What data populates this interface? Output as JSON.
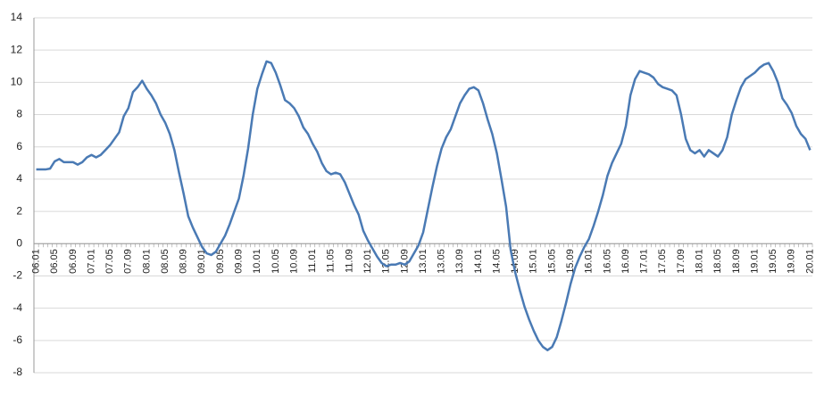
{
  "chart_data": {
    "type": "line",
    "color": "#4a7ab4",
    "grid": true,
    "ylim": [
      -8,
      14
    ],
    "yticks": [
      -8,
      -6,
      -4,
      -2,
      0,
      2,
      4,
      6,
      8,
      10,
      12,
      14
    ],
    "categories": [
      "06.01",
      null,
      null,
      null,
      "06.05",
      null,
      null,
      null,
      "06.09",
      null,
      null,
      null,
      "07.01",
      null,
      null,
      null,
      "07.05",
      null,
      null,
      null,
      "07.09",
      null,
      null,
      null,
      "08.01",
      null,
      null,
      null,
      "08.05",
      null,
      null,
      null,
      "08.09",
      null,
      null,
      null,
      "09.01",
      null,
      null,
      null,
      "09.05",
      null,
      null,
      null,
      "09.09",
      null,
      null,
      null,
      "10.01",
      null,
      null,
      null,
      "10.05",
      null,
      null,
      null,
      "10.09",
      null,
      null,
      null,
      "11.01",
      null,
      null,
      null,
      "11.05",
      null,
      null,
      null,
      "11.09",
      null,
      null,
      null,
      "12.01",
      null,
      null,
      null,
      "12.05",
      null,
      null,
      null,
      "12.09",
      null,
      null,
      null,
      "13.01",
      null,
      null,
      null,
      "13.05",
      null,
      null,
      null,
      "13.09",
      null,
      null,
      null,
      "14.01",
      null,
      null,
      null,
      "14.05",
      null,
      null,
      null,
      "14.09",
      null,
      null,
      null,
      "15.01",
      null,
      null,
      null,
      "15.05",
      null,
      null,
      null,
      "15.09",
      null,
      null,
      null,
      "16.01",
      null,
      null,
      null,
      "16.05",
      null,
      null,
      null,
      "16.09",
      null,
      null,
      null,
      "17.01",
      null,
      null,
      null,
      "17.05",
      null,
      null,
      null,
      "17.09",
      null,
      null,
      null,
      "18.01",
      null,
      null,
      null,
      "18.05",
      null,
      null,
      null,
      "18.09",
      null,
      null,
      null,
      "19.01",
      null,
      null,
      null,
      "19.05",
      null,
      null,
      null,
      "19.09",
      null,
      null,
      null,
      "20.01"
    ],
    "values": [
      4.6,
      4.6,
      4.6,
      4.65,
      5.1,
      5.25,
      5.05,
      5.05,
      5.05,
      4.9,
      5.05,
      5.35,
      5.5,
      5.35,
      5.5,
      5.8,
      6.1,
      6.5,
      6.9,
      7.9,
      8.4,
      9.4,
      9.7,
      10.1,
      9.6,
      9.2,
      8.7,
      8.0,
      7.5,
      6.8,
      5.8,
      4.4,
      3.1,
      1.7,
      1.0,
      0.4,
      -0.2,
      -0.6,
      -0.7,
      -0.5,
      0.0,
      0.5,
      1.2,
      2.0,
      2.8,
      4.2,
      5.9,
      8.0,
      9.6,
      10.5,
      11.3,
      11.2,
      10.6,
      9.8,
      8.9,
      8.7,
      8.4,
      7.9,
      7.2,
      6.8,
      6.2,
      5.7,
      5.0,
      4.5,
      4.3,
      4.4,
      4.3,
      3.8,
      3.1,
      2.4,
      1.8,
      0.8,
      0.2,
      -0.3,
      -0.8,
      -1.2,
      -1.4,
      -1.3,
      -1.3,
      -1.2,
      -1.3,
      -1.1,
      -0.6,
      -0.1,
      0.7,
      2.1,
      3.5,
      4.8,
      5.9,
      6.6,
      7.1,
      7.9,
      8.7,
      9.2,
      9.6,
      9.7,
      9.5,
      8.7,
      7.7,
      6.8,
      5.6,
      4.0,
      2.3,
      -0.4,
      -1.8,
      -2.9,
      -3.9,
      -4.7,
      -5.4,
      -6.0,
      -6.4,
      -6.6,
      -6.4,
      -5.8,
      -4.8,
      -3.7,
      -2.5,
      -1.5,
      -0.8,
      -0.2,
      0.3,
      1.1,
      2.0,
      3.0,
      4.2,
      5.0,
      5.6,
      6.2,
      7.3,
      9.2,
      10.2,
      10.7,
      10.6,
      10.5,
      10.3,
      9.9,
      9.7,
      9.6,
      9.5,
      9.2,
      8.0,
      6.5,
      5.8,
      5.6,
      5.8,
      5.4,
      5.8,
      5.6,
      5.4,
      5.8,
      6.6,
      8.0,
      8.9,
      9.7,
      10.2,
      10.4,
      10.6,
      10.9,
      11.1,
      11.2,
      10.7,
      10.0,
      9.0,
      8.6,
      8.1,
      7.3,
      6.8,
      6.5,
      5.8
    ]
  }
}
